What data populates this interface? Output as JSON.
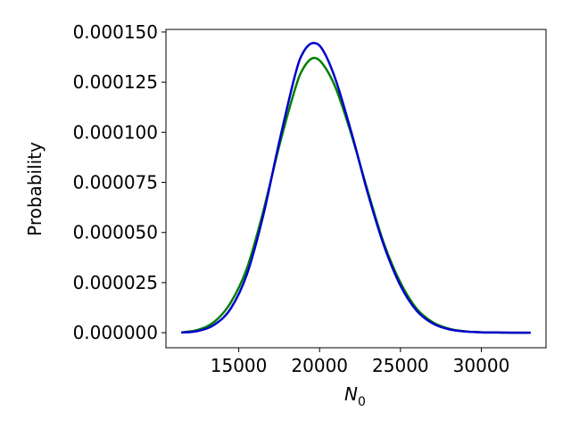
{
  "chart_data": {
    "type": "line",
    "title": "",
    "ylabel": "Probability",
    "xlabel_main": "N",
    "xlabel_sub": "0",
    "xlim": [
      10500,
      34000
    ],
    "ylim": [
      -7.5e-06,
      0.0001513
    ],
    "x_ticks": [
      15000,
      20000,
      25000,
      30000
    ],
    "x_tick_labels": [
      "15000",
      "20000",
      "25000",
      "30000"
    ],
    "y_ticks": [
      0,
      2.5e-05,
      5e-05,
      7.5e-05,
      0.0001,
      0.000125,
      0.00015
    ],
    "y_tick_labels": [
      "0.000000",
      "0.000025",
      "0.000050",
      "0.000075",
      "0.000100",
      "0.000125",
      "0.000150"
    ],
    "grid": false,
    "legend": "none",
    "series": [
      {
        "color": "#008000",
        "x": [
          11500,
          12500,
          13500,
          14500,
          15500,
          16500,
          17500,
          18500,
          19000,
          19600,
          20200,
          21000,
          22000,
          23000,
          24000,
          25000,
          26000,
          27000,
          28000,
          29000,
          30000,
          31000,
          32000,
          33000
        ],
        "y": [
          2e-07,
          1.5e-06,
          5.5e-06,
          1.5e-05,
          3.2e-05,
          6e-05,
          9.3e-05,
          0.000122,
          0.000132,
          0.000137,
          0.000134,
          0.000122,
          9.8e-05,
          7e-05,
          4.4e-05,
          2.5e-05,
          1.2e-05,
          5.2e-06,
          2e-06,
          7e-07,
          2e-07,
          1e-07,
          0.0,
          0.0
        ]
      },
      {
        "color": "#0000cc",
        "x": [
          11500,
          12500,
          13500,
          14500,
          15500,
          16500,
          17500,
          18500,
          19000,
          19600,
          20200,
          21000,
          22000,
          23000,
          24000,
          25000,
          26000,
          27000,
          28000,
          29000,
          30000,
          31000,
          32000,
          33000
        ],
        "y": [
          1e-07,
          9e-07,
          4e-06,
          1.2e-05,
          2.9e-05,
          5.8e-05,
          9.5e-05,
          0.000129,
          0.00014,
          0.0001445,
          0.000141,
          0.000126,
          9.9e-05,
          6.9e-05,
          4.3e-05,
          2.35e-05,
          1.1e-05,
          4.6e-06,
          1.7e-06,
          6e-07,
          2e-07,
          1e-07,
          0.0,
          0.0
        ]
      }
    ]
  }
}
